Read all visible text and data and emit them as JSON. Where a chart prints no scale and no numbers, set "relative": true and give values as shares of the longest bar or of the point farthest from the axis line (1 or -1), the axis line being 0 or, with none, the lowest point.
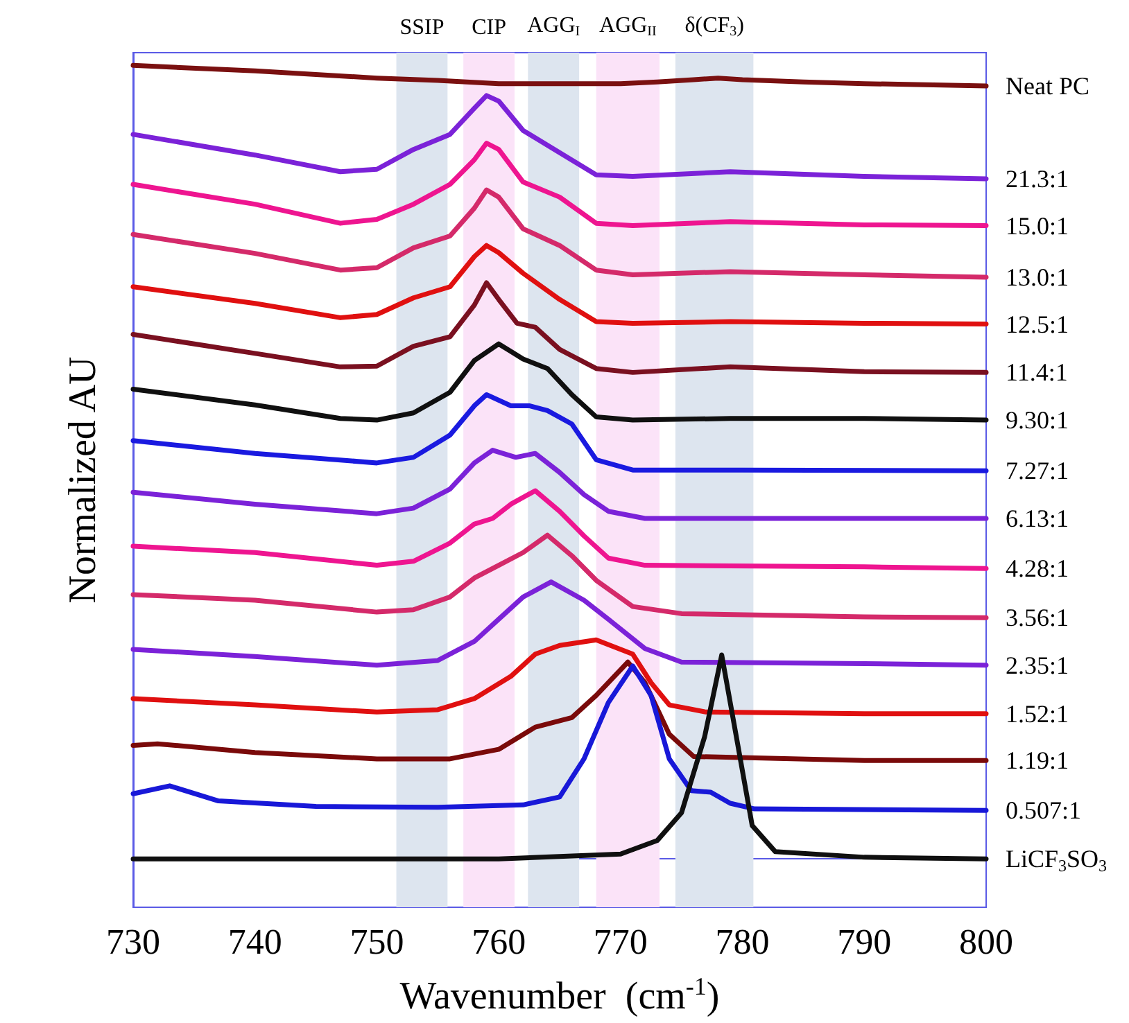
{
  "chart_data": {
    "type": "line",
    "relative": true,
    "xlabel": "Wavenumber  (cm$^{-1}$)",
    "ylabel": "Normalized AU",
    "xlim": [
      730,
      800
    ],
    "xticks": [
      730,
      740,
      750,
      760,
      770,
      780,
      790,
      800
    ],
    "tick_labels": "x",
    "grid": false,
    "line_style": "solid",
    "bands": [
      {
        "axis": "x",
        "from": 751.6,
        "to": 755.8,
        "label": "SSIP",
        "color": "#dde5ef"
      },
      {
        "axis": "x",
        "from": 757.1,
        "to": 761.3,
        "label": "CIP",
        "color": "#fbe3f8"
      },
      {
        "axis": "x",
        "from": 762.4,
        "to": 766.6,
        "label": "AGG$_{I}$",
        "color": "#dde5ef"
      },
      {
        "axis": "x",
        "from": 768.0,
        "to": 773.2,
        "label": "AGG$_{II}$",
        "color": "#fbe3f8"
      },
      {
        "axis": "x",
        "from": 774.5,
        "to": 780.9,
        "label": "δ(CF$_{3}$)",
        "color": "#dde5ef"
      }
    ],
    "series": [
      {
        "name": "Neat PC",
        "color": "#7a1010",
        "x": [
          730,
          740,
          750,
          755,
          760,
          765,
          770,
          773,
          776,
          778,
          780,
          785,
          790,
          800
        ],
        "values": [
          1.0,
          0.993,
          0.984,
          0.981,
          0.977,
          0.977,
          0.977,
          0.979,
          0.982,
          0.984,
          0.982,
          0.979,
          0.977,
          0.974
        ]
      },
      {
        "name": "21.3:1",
        "color": "#7b22d8",
        "x": [
          730,
          740,
          747,
          750,
          753,
          756,
          758,
          759,
          760,
          762,
          765,
          768,
          771,
          779,
          790,
          800
        ],
        "values": [
          0.913,
          0.887,
          0.866,
          0.869,
          0.894,
          0.913,
          0.946,
          0.962,
          0.955,
          0.918,
          0.89,
          0.862,
          0.86,
          0.866,
          0.86,
          0.857
        ]
      },
      {
        "name": "15.0:1",
        "color": "#ee1590",
        "x": [
          730,
          740,
          747,
          750,
          753,
          756,
          758,
          759,
          760,
          762,
          765,
          768,
          771,
          779,
          790,
          800
        ],
        "values": [
          0.85,
          0.825,
          0.801,
          0.806,
          0.825,
          0.85,
          0.881,
          0.902,
          0.894,
          0.853,
          0.834,
          0.801,
          0.798,
          0.803,
          0.799,
          0.798
        ]
      },
      {
        "name": "13.0:1",
        "color": "#d42a6a",
        "x": [
          730,
          740,
          747,
          750,
          753,
          756,
          758,
          759,
          760,
          762,
          765,
          768,
          771,
          779,
          790,
          800
        ],
        "values": [
          0.787,
          0.763,
          0.742,
          0.745,
          0.77,
          0.785,
          0.82,
          0.843,
          0.834,
          0.794,
          0.773,
          0.742,
          0.736,
          0.74,
          0.736,
          0.733
        ]
      },
      {
        "name": "12.5:1",
        "color": "#e01010",
        "x": [
          730,
          740,
          747,
          750,
          753,
          756,
          758,
          759,
          760,
          762,
          765,
          768,
          771,
          779,
          790,
          800
        ],
        "values": [
          0.721,
          0.7,
          0.682,
          0.686,
          0.707,
          0.721,
          0.759,
          0.773,
          0.764,
          0.738,
          0.705,
          0.677,
          0.675,
          0.677,
          0.675,
          0.674
        ]
      },
      {
        "name": "11.4:1",
        "color": "#7a1020",
        "x": [
          730,
          740,
          747,
          750,
          753,
          756,
          758,
          759,
          760,
          761.5,
          763,
          765,
          768,
          771,
          779,
          790,
          800
        ],
        "values": [
          0.661,
          0.637,
          0.62,
          0.621,
          0.646,
          0.658,
          0.698,
          0.726,
          0.705,
          0.675,
          0.67,
          0.642,
          0.618,
          0.613,
          0.62,
          0.614,
          0.613
        ]
      },
      {
        "name": "9.30:1",
        "color": "#101010",
        "x": [
          730,
          740,
          747,
          750,
          753,
          756,
          758,
          760,
          762,
          764,
          766,
          768,
          771,
          779,
          790,
          800
        ],
        "values": [
          0.592,
          0.572,
          0.555,
          0.553,
          0.562,
          0.588,
          0.628,
          0.649,
          0.63,
          0.618,
          0.585,
          0.557,
          0.553,
          0.555,
          0.555,
          0.553
        ]
      },
      {
        "name": "7.27:1",
        "color": "#1a1ae0",
        "x": [
          730,
          740,
          750,
          753,
          756,
          758,
          759,
          761,
          762.5,
          764,
          766,
          768,
          771,
          780,
          800
        ],
        "values": [
          0.527,
          0.511,
          0.499,
          0.506,
          0.534,
          0.571,
          0.585,
          0.571,
          0.571,
          0.565,
          0.548,
          0.503,
          0.49,
          0.49,
          0.489
        ]
      },
      {
        "name": "6.13:1",
        "color": "#7b22d8",
        "x": [
          730,
          740,
          750,
          753,
          756,
          758,
          759.5,
          761.4,
          763,
          765,
          767,
          769,
          772,
          790,
          800
        ],
        "values": [
          0.462,
          0.447,
          0.435,
          0.442,
          0.466,
          0.499,
          0.515,
          0.506,
          0.511,
          0.487,
          0.459,
          0.438,
          0.429,
          0.429,
          0.429
        ]
      },
      {
        "name": "4.28:1",
        "color": "#ee1590",
        "x": [
          730,
          740,
          750,
          753,
          756,
          758,
          759.5,
          761,
          763,
          765,
          767,
          769,
          772,
          790,
          800
        ],
        "values": [
          0.394,
          0.386,
          0.37,
          0.375,
          0.398,
          0.422,
          0.429,
          0.447,
          0.464,
          0.438,
          0.407,
          0.379,
          0.37,
          0.368,
          0.366
        ]
      },
      {
        "name": "3.56:1",
        "color": "#d42a6a",
        "x": [
          730,
          740,
          750,
          753,
          756,
          758,
          760,
          762,
          764,
          766,
          768,
          771,
          775,
          790,
          800
        ],
        "values": [
          0.333,
          0.326,
          0.311,
          0.314,
          0.33,
          0.354,
          0.37,
          0.386,
          0.408,
          0.382,
          0.351,
          0.318,
          0.309,
          0.305,
          0.304
        ]
      },
      {
        "name": "2.35:1",
        "color": "#7b22d8",
        "x": [
          730,
          740,
          750,
          755,
          758,
          760,
          762,
          764.3,
          767,
          769,
          772,
          775,
          790,
          800
        ],
        "values": [
          0.264,
          0.255,
          0.244,
          0.25,
          0.274,
          0.302,
          0.33,
          0.349,
          0.326,
          0.302,
          0.265,
          0.248,
          0.246,
          0.244
        ]
      },
      {
        "name": "1.52:1",
        "color": "#e01010",
        "x": [
          730,
          740,
          750,
          755,
          758,
          761,
          763,
          765,
          768,
          771,
          772.5,
          774,
          777,
          790,
          800
        ],
        "values": [
          0.202,
          0.194,
          0.185,
          0.188,
          0.202,
          0.23,
          0.258,
          0.269,
          0.276,
          0.258,
          0.222,
          0.194,
          0.185,
          0.183,
          0.183
        ]
      },
      {
        "name": "1.19:1",
        "color": "#7a0a0a",
        "x": [
          730,
          732,
          740,
          750,
          756,
          760,
          763,
          766,
          768,
          770.6,
          772,
          774,
          776,
          790,
          800
        ],
        "values": [
          0.143,
          0.145,
          0.134,
          0.126,
          0.126,
          0.138,
          0.166,
          0.178,
          0.206,
          0.248,
          0.222,
          0.157,
          0.129,
          0.124,
          0.124
        ]
      },
      {
        "name": "0.507:1",
        "color": "#1818d8",
        "x": [
          730,
          733,
          737,
          745,
          755,
          762,
          765,
          767,
          769,
          771,
          772.5,
          774,
          775.8,
          777.4,
          779,
          781,
          800
        ],
        "values": [
          0.082,
          0.092,
          0.073,
          0.066,
          0.065,
          0.068,
          0.078,
          0.126,
          0.197,
          0.243,
          0.206,
          0.126,
          0.086,
          0.084,
          0.07,
          0.063,
          0.061
        ]
      },
      {
        "name": "LiCF$_{3}$SO$_{3}$",
        "color": "#101010",
        "x": [
          730,
          760,
          770,
          773,
          775,
          776.9,
          778.3,
          779.5,
          780.8,
          782.7,
          790,
          800
        ],
        "values": [
          0,
          0,
          0.006,
          0.023,
          0.058,
          0.154,
          0.257,
          0.154,
          0.042,
          0.009,
          0.002,
          0
        ]
      }
    ]
  }
}
